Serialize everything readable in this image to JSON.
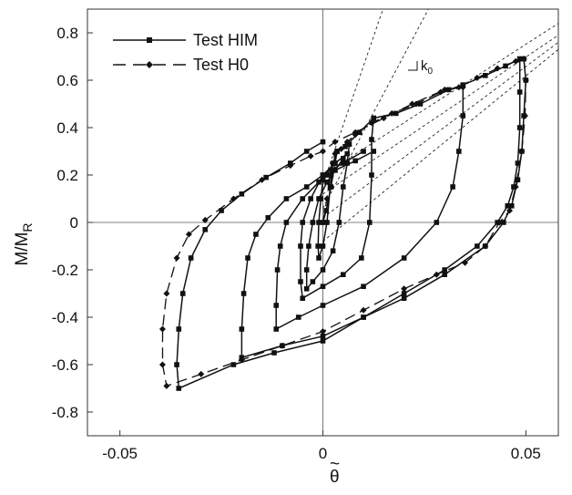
{
  "chart_data": {
    "type": "line",
    "xlabel": "θ̃",
    "ylabel": "M/M_R",
    "ylabel_main": "M/M",
    "ylabel_sub": "R",
    "xlim": [
      -0.058,
      0.058
    ],
    "ylim": [
      -0.9,
      0.9
    ],
    "x_ticks": [
      -0.05,
      0,
      0.05
    ],
    "x_tick_labels": [
      "-0.05",
      "0",
      "0.05"
    ],
    "y_ticks": [
      -0.8,
      -0.6,
      -0.4,
      -0.2,
      0,
      0.2,
      0.4,
      0.6,
      0.8
    ],
    "y_tick_labels": [
      "-0.8",
      "-0.6",
      "-0.4",
      "-0.2",
      "0",
      "0.2",
      "0.4",
      "0.6",
      "0.8"
    ],
    "grid": false,
    "zero_lines": true,
    "legend_position": "top-left",
    "annotation": {
      "text": "k",
      "subscript": "0",
      "anchor": [
        0.0195,
        0.68
      ]
    },
    "stiffness_lines": [
      {
        "points": [
          [
            0.0,
            0.16
          ],
          [
            0.0148,
            0.9
          ]
        ]
      },
      {
        "points": [
          [
            0.0,
            0.06
          ],
          [
            0.026,
            0.9
          ]
        ]
      },
      {
        "points": [
          [
            0.0,
            0.2
          ],
          [
            0.058,
            0.84
          ]
        ]
      },
      {
        "points": [
          [
            0.0,
            0.12
          ],
          [
            0.058,
            0.79
          ]
        ]
      },
      {
        "points": [
          [
            0.0,
            0.02
          ],
          [
            0.058,
            0.76
          ]
        ]
      },
      {
        "points": [
          [
            0.0,
            -0.08
          ],
          [
            0.058,
            0.73
          ]
        ]
      }
    ],
    "series": [
      {
        "name": "Test HIM",
        "style": "solid",
        "marker": "square",
        "loops": [
          [
            [
              0.0,
              0.0
            ],
            [
              0.0008,
              0.05
            ],
            [
              0.002,
              0.15
            ],
            [
              0.003,
              0.25
            ],
            [
              0.0035,
              0.3
            ],
            [
              0.0025,
              0.25
            ],
            [
              0.0018,
              0.15
            ],
            [
              0.001,
              0.0
            ],
            [
              0.0,
              -0.1
            ],
            [
              -0.001,
              -0.15
            ],
            [
              -0.0012,
              -0.1
            ],
            [
              -0.001,
              0.0
            ],
            [
              -0.0005,
              0.1
            ],
            [
              0.0,
              0.18
            ],
            [
              0.001,
              0.2
            ],
            [
              0.002,
              0.2
            ]
          ],
          [
            [
              0.0035,
              0.3
            ],
            [
              0.0055,
              0.32
            ],
            [
              0.0065,
              0.33
            ],
            [
              0.006,
              0.25
            ],
            [
              0.005,
              0.15
            ],
            [
              0.004,
              0.0
            ],
            [
              0.0025,
              -0.12
            ],
            [
              0.0,
              -0.2
            ],
            [
              -0.0025,
              -0.25
            ],
            [
              -0.004,
              -0.28
            ],
            [
              -0.004,
              -0.2
            ],
            [
              -0.0035,
              -0.1
            ],
            [
              -0.0025,
              0.0
            ],
            [
              -0.001,
              0.1
            ],
            [
              0.001,
              0.17
            ],
            [
              0.003,
              0.22
            ],
            [
              0.005,
              0.27
            ]
          ],
          [
            [
              0.006,
              0.33
            ],
            [
              0.009,
              0.38
            ],
            [
              0.0125,
              0.44
            ],
            [
              0.012,
              0.35
            ],
            [
              0.012,
              0.2
            ],
            [
              0.0115,
              0.0
            ],
            [
              0.0095,
              -0.15
            ],
            [
              0.005,
              -0.22
            ],
            [
              0.0,
              -0.27
            ],
            [
              -0.005,
              -0.32
            ],
            [
              -0.0055,
              -0.25
            ],
            [
              -0.0055,
              -0.1
            ],
            [
              -0.005,
              0.0
            ],
            [
              -0.003,
              0.1
            ],
            [
              0.0,
              0.2
            ],
            [
              0.003,
              0.25
            ],
            [
              0.006,
              0.29
            ]
          ],
          [
            [
              0.0125,
              0.44
            ],
            [
              0.018,
              0.46
            ],
            [
              0.024,
              0.5
            ],
            [
              0.031,
              0.56
            ],
            [
              0.0345,
              0.58
            ],
            [
              0.0345,
              0.45
            ],
            [
              0.0335,
              0.3
            ],
            [
              0.032,
              0.15
            ],
            [
              0.028,
              0.0
            ],
            [
              0.02,
              -0.15
            ],
            [
              0.01,
              -0.27
            ],
            [
              0.0,
              -0.35
            ],
            [
              -0.006,
              -0.4
            ],
            [
              -0.0115,
              -0.45
            ],
            [
              -0.0115,
              -0.35
            ],
            [
              -0.0112,
              -0.2
            ],
            [
              -0.0105,
              -0.1
            ],
            [
              -0.009,
              0.0
            ],
            [
              -0.005,
              0.1
            ],
            [
              -0.001,
              0.17
            ],
            [
              0.003,
              0.22
            ],
            [
              0.008,
              0.26
            ],
            [
              0.0125,
              0.3
            ]
          ],
          [
            [
              0.0345,
              0.58
            ],
            [
              0.04,
              0.62
            ],
            [
              0.045,
              0.66
            ],
            [
              0.0485,
              0.69
            ],
            [
              0.0485,
              0.55
            ],
            [
              0.0485,
              0.4
            ],
            [
              0.048,
              0.25
            ],
            [
              0.047,
              0.15
            ],
            [
              0.0455,
              0.07
            ],
            [
              0.043,
              0.0
            ],
            [
              0.038,
              -0.1
            ],
            [
              0.03,
              -0.2
            ],
            [
              0.02,
              -0.3
            ],
            [
              0.01,
              -0.4
            ],
            [
              0.0,
              -0.48
            ],
            [
              -0.01,
              -0.52
            ],
            [
              -0.02,
              -0.57
            ],
            [
              -0.02,
              -0.45
            ],
            [
              -0.0195,
              -0.3
            ],
            [
              -0.0185,
              -0.15
            ],
            [
              -0.0165,
              -0.05
            ],
            [
              -0.0135,
              0.02
            ],
            [
              -0.009,
              0.1
            ],
            [
              -0.004,
              0.15
            ],
            [
              0.0,
              0.2
            ],
            [
              0.005,
              0.25
            ],
            [
              0.01,
              0.3
            ]
          ],
          [
            [
              0.0485,
              0.69
            ],
            [
              0.0495,
              0.69
            ],
            [
              0.05,
              0.6
            ],
            [
              0.0495,
              0.45
            ],
            [
              0.049,
              0.3
            ],
            [
              0.048,
              0.18
            ],
            [
              0.0465,
              0.07
            ],
            [
              0.0445,
              0.0
            ],
            [
              0.04,
              -0.1
            ],
            [
              0.03,
              -0.22
            ],
            [
              0.02,
              -0.32
            ],
            [
              0.01,
              -0.4
            ],
            [
              0.0,
              -0.5
            ],
            [
              -0.012,
              -0.55
            ],
            [
              -0.022,
              -0.6
            ],
            [
              -0.0355,
              -0.7
            ],
            [
              -0.036,
              -0.6
            ],
            [
              -0.0355,
              -0.45
            ],
            [
              -0.0345,
              -0.3
            ],
            [
              -0.0325,
              -0.15
            ],
            [
              -0.029,
              -0.03
            ],
            [
              -0.025,
              0.05
            ],
            [
              -0.02,
              0.12
            ],
            [
              -0.014,
              0.19
            ],
            [
              -0.008,
              0.25
            ],
            [
              -0.004,
              0.3
            ],
            [
              0.0,
              0.34
            ]
          ]
        ]
      },
      {
        "name": "Test H0",
        "style": "dashed",
        "marker": "diamond",
        "loops": [
          [
            [
              0.0,
              0.0
            ],
            [
              0.001,
              0.1
            ],
            [
              0.002,
              0.22
            ],
            [
              0.003,
              0.29
            ],
            [
              0.0045,
              0.31
            ],
            [
              0.006,
              0.34
            ],
            [
              0.008,
              0.37
            ],
            [
              0.012,
              0.42
            ],
            [
              0.017,
              0.46
            ],
            [
              0.023,
              0.5
            ],
            [
              0.029,
              0.55
            ],
            [
              0.0335,
              0.57
            ],
            [
              0.038,
              0.61
            ],
            [
              0.043,
              0.65
            ],
            [
              0.0475,
              0.68
            ],
            [
              0.0495,
              0.69
            ]
          ],
          [
            [
              0.0495,
              0.69
            ],
            [
              0.05,
              0.6
            ],
            [
              0.0498,
              0.45
            ],
            [
              0.049,
              0.3
            ],
            [
              0.0475,
              0.15
            ],
            [
              0.046,
              0.05
            ],
            [
              0.0435,
              0.0
            ],
            [
              0.04,
              -0.1
            ],
            [
              0.035,
              -0.17
            ],
            [
              0.028,
              -0.22
            ],
            [
              0.02,
              -0.28
            ],
            [
              0.01,
              -0.37
            ],
            [
              0.0,
              -0.46
            ],
            [
              -0.01,
              -0.52
            ],
            [
              -0.02,
              -0.58
            ],
            [
              -0.03,
              -0.64
            ],
            [
              -0.0385,
              -0.69
            ],
            [
              -0.0395,
              -0.6
            ],
            [
              -0.0395,
              -0.45
            ],
            [
              -0.0385,
              -0.3
            ],
            [
              -0.036,
              -0.15
            ],
            [
              -0.033,
              -0.05
            ],
            [
              -0.029,
              0.01
            ],
            [
              -0.022,
              0.1
            ],
            [
              -0.015,
              0.18
            ],
            [
              -0.008,
              0.24
            ],
            [
              -0.003,
              0.28
            ],
            [
              0.0,
              0.3
            ],
            [
              0.003,
              0.34
            ],
            [
              0.008,
              0.38
            ],
            [
              0.015,
              0.44
            ],
            [
              0.022,
              0.5
            ],
            [
              0.03,
              0.56
            ],
            [
              0.0345,
              0.57
            ]
          ]
        ]
      }
    ]
  }
}
